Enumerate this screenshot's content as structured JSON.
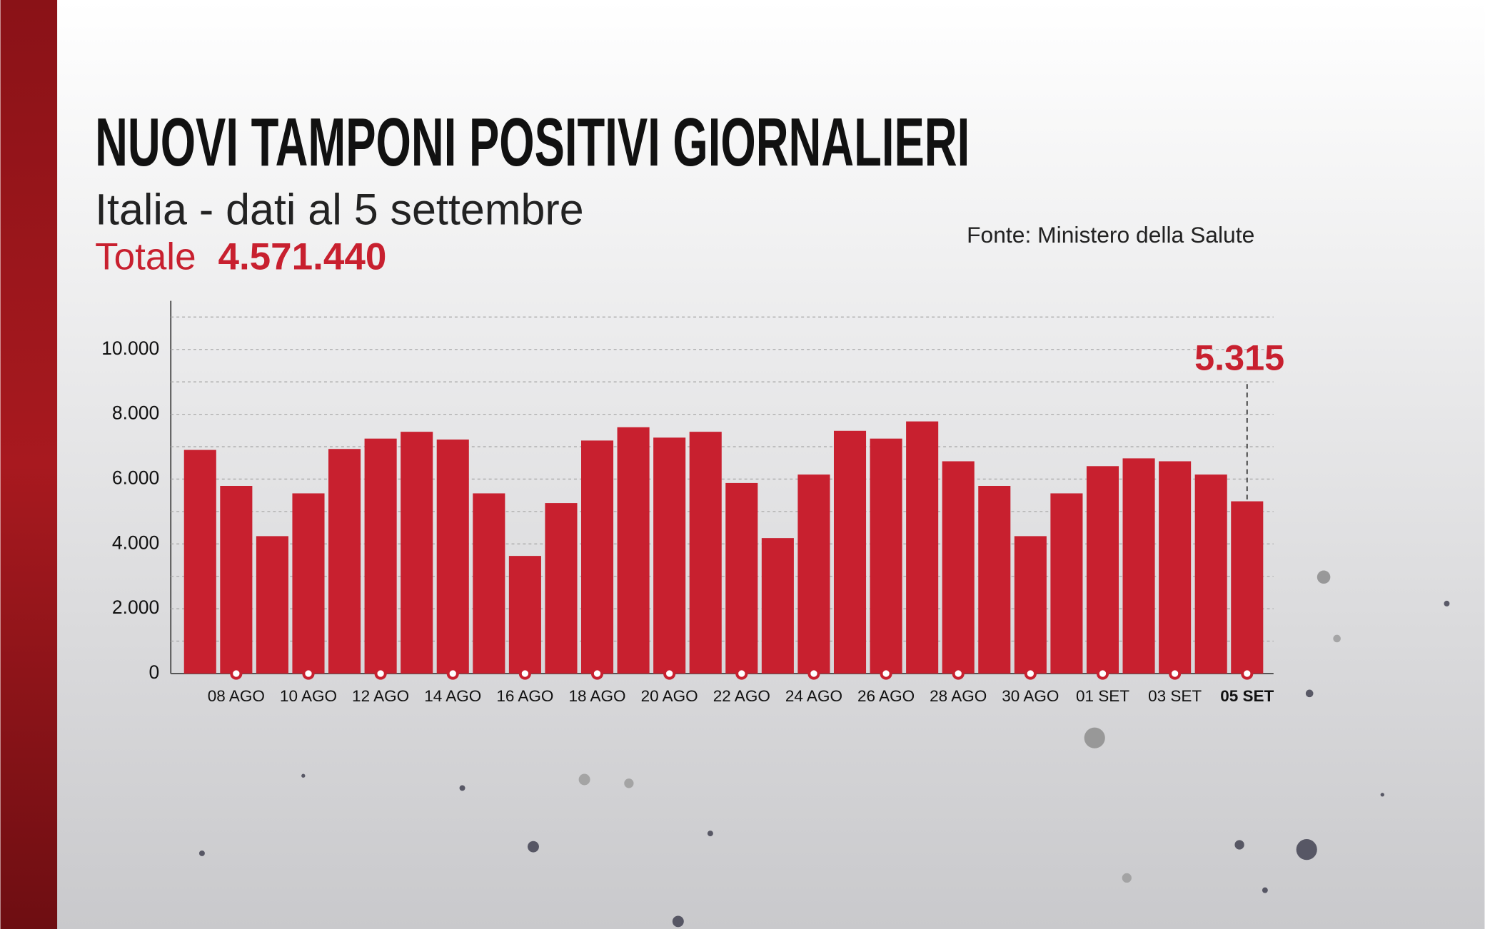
{
  "chart_data": {
    "type": "bar",
    "title": "NUOVI TAMPONI POSITIVI GIORNALIERI",
    "subtitle": "Italia - dati al 5 settembre",
    "total_label": "Totale",
    "total_value": "4.571.440",
    "source": "Fonte: Ministero della Salute",
    "categories": [
      null,
      "08 AGO",
      null,
      "10 AGO",
      null,
      "12 AGO",
      null,
      "14 AGO",
      null,
      "16 AGO",
      null,
      "18 AGO",
      null,
      "20 AGO",
      null,
      "22 AGO",
      null,
      "24 AGO",
      null,
      "26 AGO",
      null,
      "28 AGO",
      null,
      "30 AGO",
      null,
      "01 SET",
      null,
      "03 SET",
      null,
      "05 SET"
    ],
    "values": [
      6900,
      5790,
      4240,
      5560,
      6930,
      7250,
      7460,
      7220,
      5560,
      3630,
      5260,
      7190,
      7600,
      7280,
      7460,
      5880,
      4180,
      6140,
      7490,
      7250,
      7780,
      6550,
      5790,
      4240,
      5560,
      6400,
      6640,
      6550,
      6140,
      5315
    ],
    "value_labels": [
      null,
      null,
      null,
      null,
      null,
      null,
      null,
      null,
      null,
      null,
      null,
      null,
      null,
      null,
      null,
      null,
      null,
      null,
      null,
      null,
      null,
      null,
      null,
      null,
      null,
      null,
      null,
      null,
      null,
      "5.315"
    ],
    "color": "#c8202f",
    "ylim": [
      0,
      11500
    ],
    "yticks": [
      0,
      {
        "value": 2000,
        "label": "2.000"
      },
      {
        "value": 4000,
        "label": "4.000"
      },
      {
        "value": 6000,
        "label": "6.000"
      },
      {
        "value": 8000,
        "label": "8.000"
      },
      {
        "value": 10000,
        "label": "10.000"
      }
    ],
    "minor_yticks": [
      1000,
      3000,
      5000,
      7000,
      9000,
      11000
    ],
    "grid": true
  }
}
